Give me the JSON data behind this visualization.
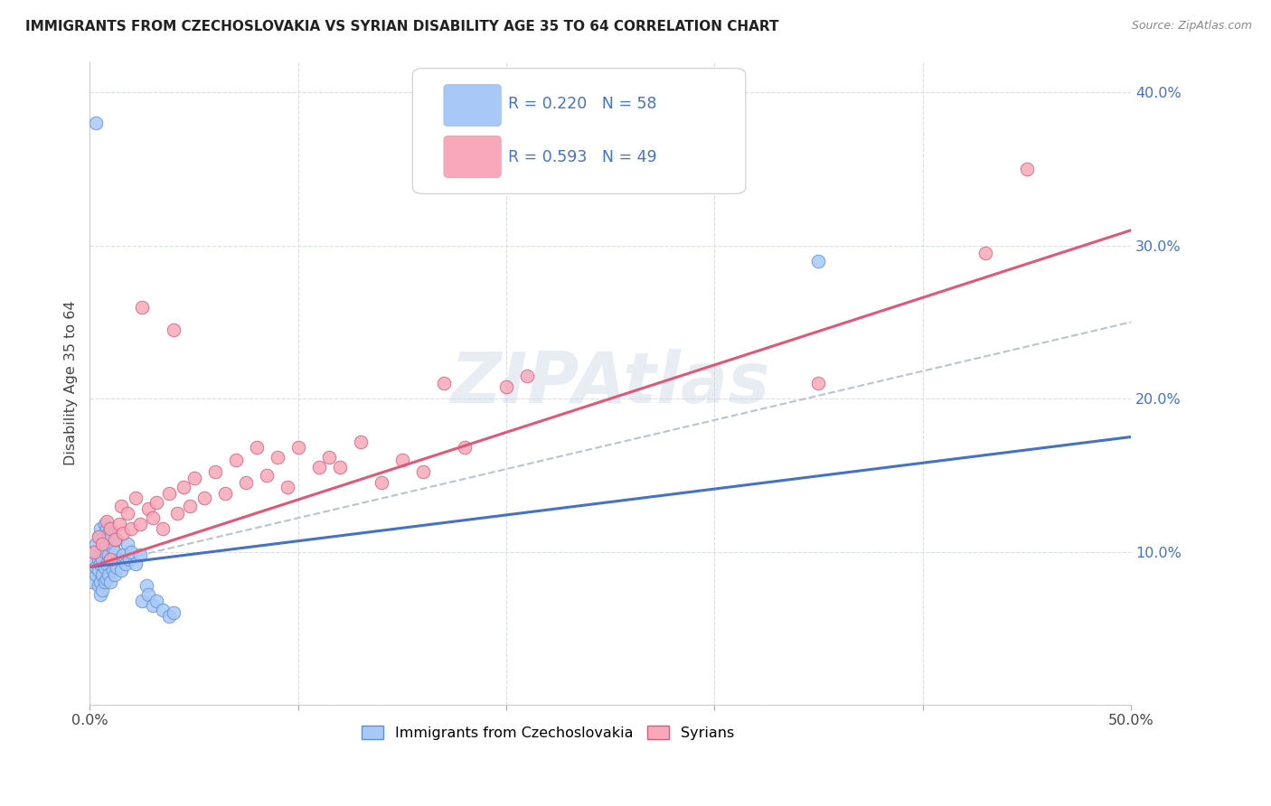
{
  "title": "IMMIGRANTS FROM CZECHOSLOVAKIA VS SYRIAN DISABILITY AGE 35 TO 64 CORRELATION CHART",
  "source": "Source: ZipAtlas.com",
  "ylabel": "Disability Age 35 to 64",
  "xlim": [
    0.0,
    0.5
  ],
  "ylim": [
    0.0,
    0.42
  ],
  "xticks": [
    0.0,
    0.1,
    0.2,
    0.3,
    0.4,
    0.5
  ],
  "yticks": [
    0.0,
    0.1,
    0.2,
    0.3,
    0.4
  ],
  "color_czech": "#a8c8f8",
  "color_syrian": "#f8a8b8",
  "color_czech_line": "#4472c4",
  "color_syrian_line": "#e05878",
  "color_czech_edge": "#6090d0",
  "color_syrian_edge": "#d06080",
  "watermark": "ZIPAtlas",
  "legend_label1": "Immigrants from Czechoslovakia",
  "legend_label2": "Syrians",
  "czech_x": [
    0.001,
    0.002,
    0.002,
    0.003,
    0.003,
    0.003,
    0.004,
    0.004,
    0.004,
    0.004,
    0.005,
    0.005,
    0.005,
    0.005,
    0.005,
    0.006,
    0.006,
    0.006,
    0.006,
    0.007,
    0.007,
    0.007,
    0.007,
    0.008,
    0.008,
    0.008,
    0.008,
    0.009,
    0.009,
    0.009,
    0.01,
    0.01,
    0.01,
    0.011,
    0.011,
    0.012,
    0.012,
    0.013,
    0.013,
    0.014,
    0.015,
    0.016,
    0.017,
    0.018,
    0.019,
    0.02,
    0.022,
    0.024,
    0.025,
    0.027,
    0.028,
    0.03,
    0.032,
    0.035,
    0.038,
    0.04,
    0.003,
    0.35
  ],
  "czech_y": [
    0.08,
    0.095,
    0.1,
    0.085,
    0.09,
    0.105,
    0.078,
    0.088,
    0.095,
    0.11,
    0.072,
    0.08,
    0.092,
    0.098,
    0.115,
    0.075,
    0.085,
    0.095,
    0.108,
    0.08,
    0.09,
    0.1,
    0.118,
    0.082,
    0.092,
    0.105,
    0.115,
    0.085,
    0.098,
    0.112,
    0.08,
    0.095,
    0.11,
    0.088,
    0.102,
    0.085,
    0.1,
    0.09,
    0.108,
    0.095,
    0.088,
    0.098,
    0.092,
    0.105,
    0.095,
    0.1,
    0.092,
    0.098,
    0.068,
    0.078,
    0.072,
    0.065,
    0.068,
    0.062,
    0.058,
    0.06,
    0.38,
    0.29
  ],
  "syrian_x": [
    0.002,
    0.004,
    0.006,
    0.008,
    0.01,
    0.01,
    0.012,
    0.014,
    0.015,
    0.016,
    0.018,
    0.02,
    0.022,
    0.024,
    0.025,
    0.028,
    0.03,
    0.032,
    0.035,
    0.038,
    0.04,
    0.042,
    0.045,
    0.048,
    0.05,
    0.055,
    0.06,
    0.065,
    0.07,
    0.075,
    0.08,
    0.085,
    0.09,
    0.095,
    0.1,
    0.11,
    0.115,
    0.12,
    0.13,
    0.14,
    0.15,
    0.16,
    0.17,
    0.18,
    0.2,
    0.21,
    0.35,
    0.43,
    0.45
  ],
  "syrian_y": [
    0.1,
    0.11,
    0.105,
    0.12,
    0.095,
    0.115,
    0.108,
    0.118,
    0.13,
    0.112,
    0.125,
    0.115,
    0.135,
    0.118,
    0.26,
    0.128,
    0.122,
    0.132,
    0.115,
    0.138,
    0.245,
    0.125,
    0.142,
    0.13,
    0.148,
    0.135,
    0.152,
    0.138,
    0.16,
    0.145,
    0.168,
    0.15,
    0.162,
    0.142,
    0.168,
    0.155,
    0.162,
    0.155,
    0.172,
    0.145,
    0.16,
    0.152,
    0.21,
    0.168,
    0.208,
    0.215,
    0.21,
    0.295,
    0.35
  ]
}
